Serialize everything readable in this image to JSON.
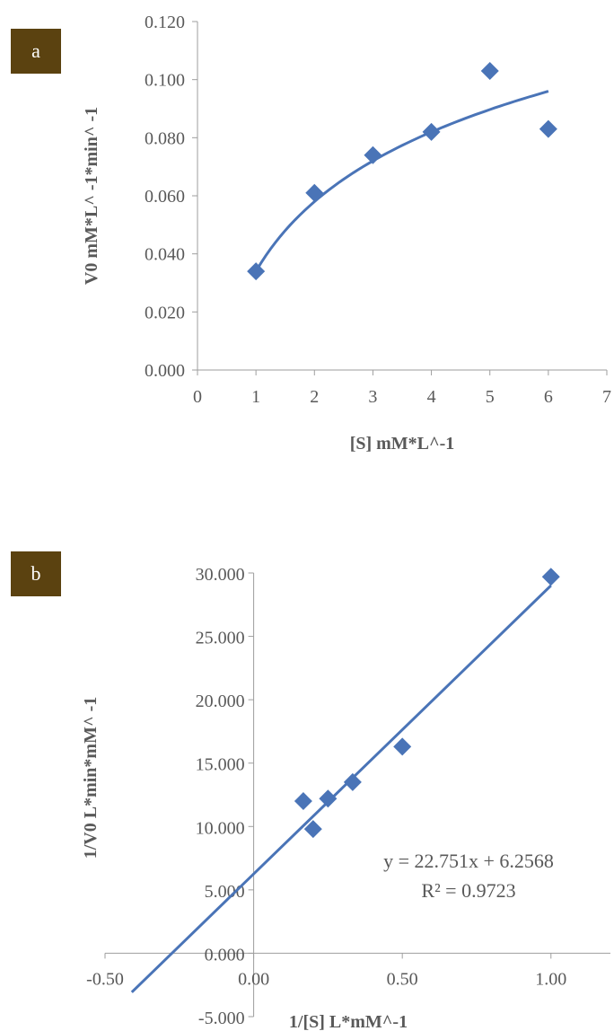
{
  "chart_data": [
    {
      "panel_label": "a",
      "type": "scatter",
      "title": "",
      "xlabel": "[S] mM*L^-1",
      "ylabel": "V0 mM*L^ -1*min^ -1",
      "xlim": [
        0,
        7
      ],
      "ylim": [
        0.0,
        0.12
      ],
      "x_ticks": [
        "0",
        "1",
        "2",
        "3",
        "4",
        "5",
        "6",
        "7"
      ],
      "y_ticks": [
        "0.000",
        "0.020",
        "0.040",
        "0.060",
        "0.080",
        "0.100",
        "0.120"
      ],
      "points": [
        {
          "x": 1,
          "y": 0.034
        },
        {
          "x": 2,
          "y": 0.061
        },
        {
          "x": 3,
          "y": 0.074
        },
        {
          "x": 4,
          "y": 0.082
        },
        {
          "x": 5,
          "y": 0.103
        },
        {
          "x": 6,
          "y": 0.083
        }
      ],
      "trendline": {
        "kind": "logarithmic",
        "x_start": 1,
        "x_end": 6,
        "y_at_start": 0.034,
        "y_at_end": 0.096
      },
      "grid": false,
      "legend": "none",
      "colors": {
        "marker": "#4a74b7",
        "line": "#4a74b7",
        "axis": "#9e9e9e",
        "text": "#595959",
        "label_box": "#5b4210"
      }
    },
    {
      "panel_label": "b",
      "type": "scatter",
      "title": "",
      "xlabel": "1/[S] L*mM^-1",
      "ylabel": "1/V0 L*min*mM^ -1",
      "xlim": [
        -0.5,
        1.2
      ],
      "ylim": [
        -5.0,
        30.0
      ],
      "x_ticks": [
        "-0.50",
        "0.00",
        "0.50",
        "1.00"
      ],
      "y_ticks": [
        "-5.000",
        "0.000",
        "5.000",
        "10.000",
        "15.000",
        "20.000",
        "25.000",
        "30.000"
      ],
      "points": [
        {
          "x": 0.167,
          "y": 12.0
        },
        {
          "x": 0.2,
          "y": 9.8
        },
        {
          "x": 0.25,
          "y": 12.2
        },
        {
          "x": 0.333,
          "y": 13.5
        },
        {
          "x": 0.5,
          "y": 16.3
        },
        {
          "x": 1.0,
          "y": 29.7
        }
      ],
      "trendline": {
        "kind": "linear",
        "slope": 22.751,
        "intercept": 6.2568,
        "x_start": -0.41,
        "x_end": 1.0
      },
      "equation": "y = 22.751x + 6.2568",
      "r_squared": "R² = 0.9723",
      "grid": false,
      "legend": "none",
      "colors": {
        "marker": "#4a74b7",
        "line": "#4a74b7",
        "axis": "#9e9e9e",
        "text": "#595959",
        "label_box": "#5b4210"
      }
    }
  ]
}
